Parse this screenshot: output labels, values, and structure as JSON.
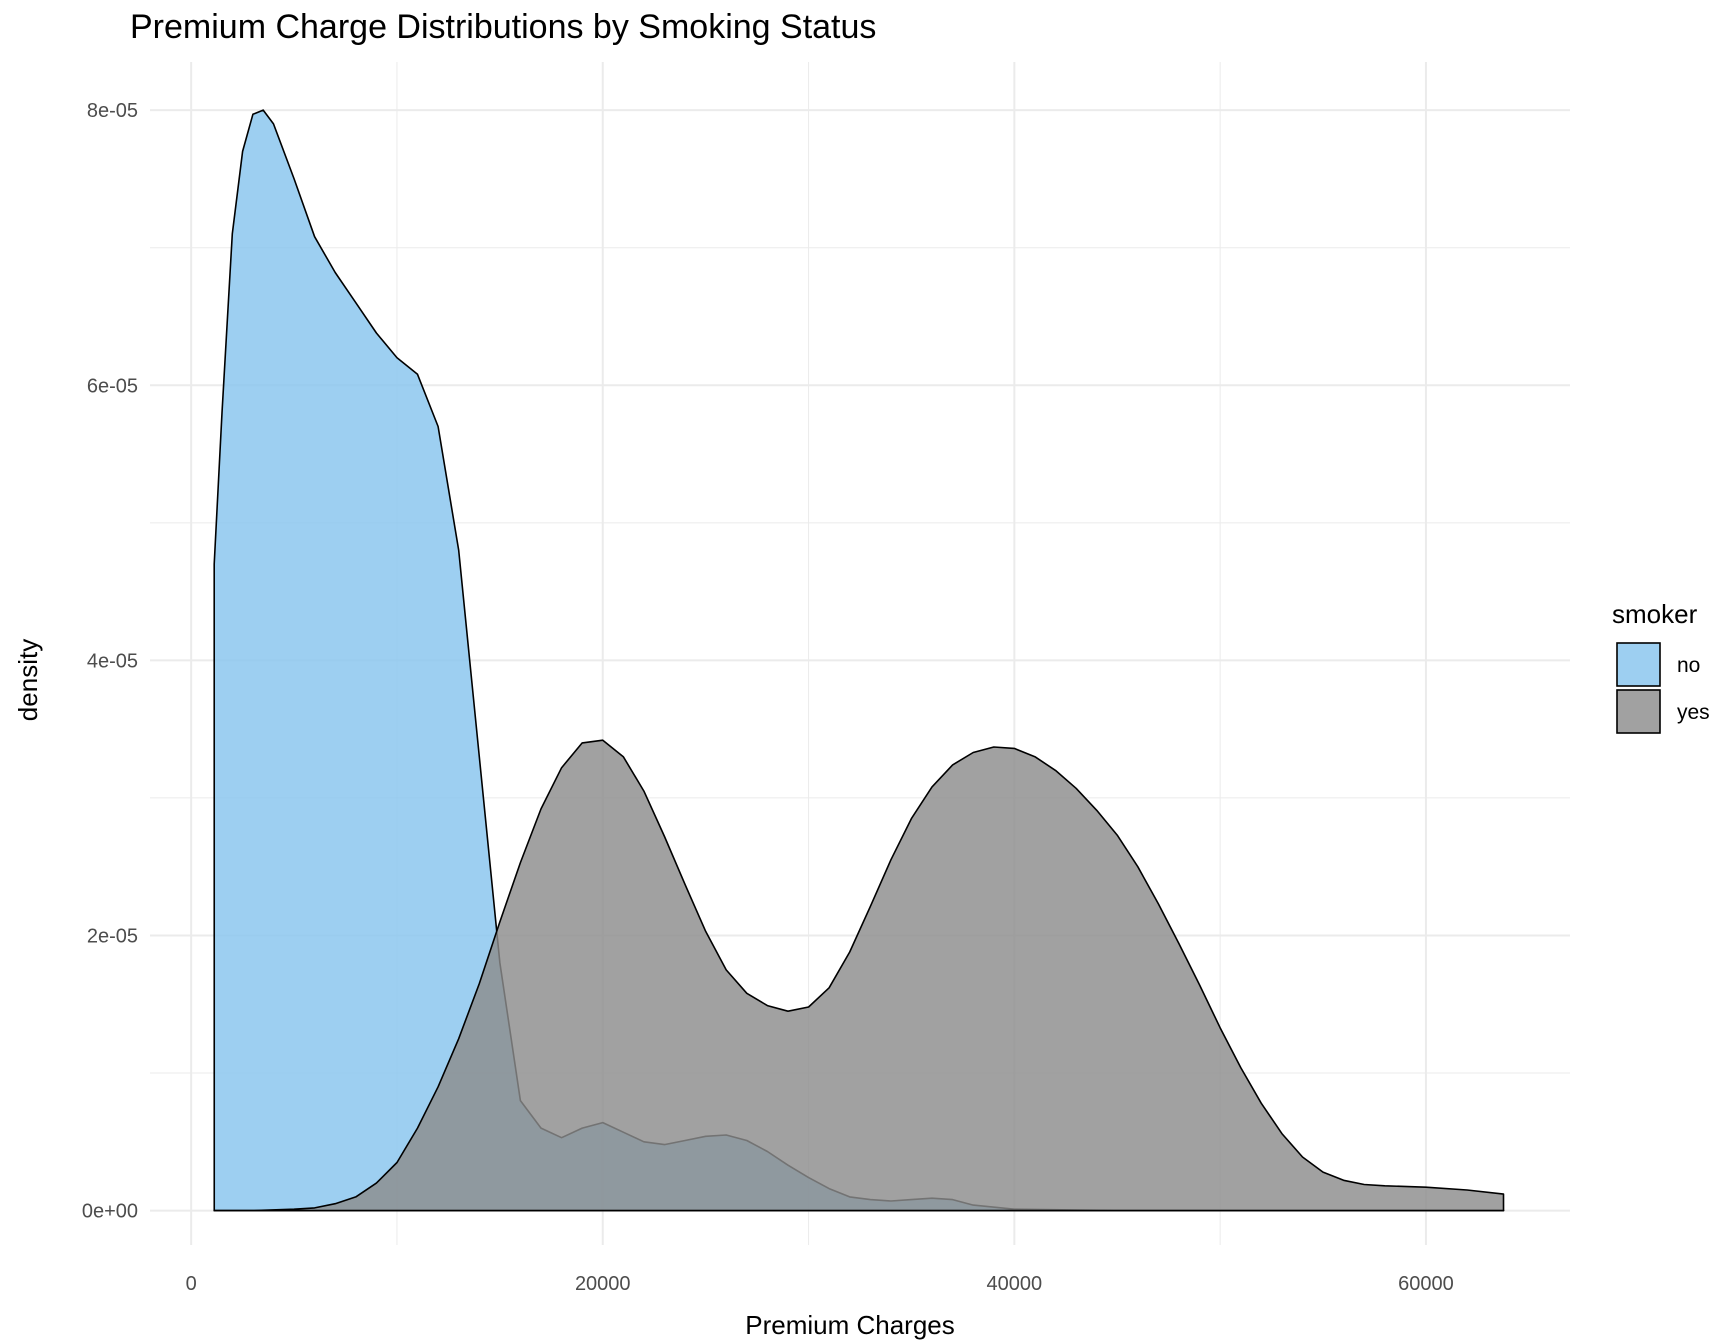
{
  "chart_data": {
    "type": "area",
    "title": "Premium Charge Distributions by Smoking Status",
    "xlabel": "Premium Charges",
    "ylabel": "density",
    "xlim": [
      -2000,
      67000
    ],
    "ylim": [
      -2.5e-06,
      8.35e-05
    ],
    "x_ticks": [
      0,
      20000,
      40000,
      60000
    ],
    "x_tick_labels": [
      "0",
      "20000",
      "40000",
      "60000"
    ],
    "y_ticks": [
      0,
      2e-05,
      4e-05,
      6e-05,
      8e-05
    ],
    "y_tick_labels": [
      "0e+00",
      "2e-05",
      "4e-05",
      "6e-05",
      "8e-05"
    ],
    "grid": true,
    "legend": {
      "title": "smoker",
      "position": "right"
    },
    "series": [
      {
        "name": "no",
        "color": "#87c5ee",
        "points": [
          [
            1122,
            4.7e-05
          ],
          [
            1500,
            5.8e-05
          ],
          [
            2000,
            7.1e-05
          ],
          [
            2500,
            7.7e-05
          ],
          [
            3000,
            7.97e-05
          ],
          [
            3500,
            8e-05
          ],
          [
            4000,
            7.9e-05
          ],
          [
            5000,
            7.5e-05
          ],
          [
            6000,
            7.08e-05
          ],
          [
            7000,
            6.82e-05
          ],
          [
            8000,
            6.6e-05
          ],
          [
            9000,
            6.38e-05
          ],
          [
            10000,
            6.2e-05
          ],
          [
            11000,
            6.08e-05
          ],
          [
            12000,
            5.7e-05
          ],
          [
            13000,
            4.8e-05
          ],
          [
            14000,
            3.3e-05
          ],
          [
            15000,
            1.8e-05
          ],
          [
            16000,
            8e-06
          ],
          [
            17000,
            6e-06
          ],
          [
            18000,
            5.3e-06
          ],
          [
            19000,
            6e-06
          ],
          [
            20000,
            6.4e-06
          ],
          [
            21000,
            5.7e-06
          ],
          [
            22000,
            5e-06
          ],
          [
            23000,
            4.8e-06
          ],
          [
            24000,
            5.1e-06
          ],
          [
            25000,
            5.4e-06
          ],
          [
            26000,
            5.5e-06
          ],
          [
            27000,
            5.1e-06
          ],
          [
            28000,
            4.3e-06
          ],
          [
            29000,
            3.3e-06
          ],
          [
            30000,
            2.4e-06
          ],
          [
            31000,
            1.6e-06
          ],
          [
            32000,
            1e-06
          ],
          [
            33000,
            8e-07
          ],
          [
            34000,
            7e-07
          ],
          [
            35000,
            8e-07
          ],
          [
            36000,
            9e-07
          ],
          [
            37000,
            8e-07
          ],
          [
            38000,
            4e-07
          ],
          [
            40000,
            1e-07
          ],
          [
            45000,
            0.0
          ],
          [
            63770,
            0.0
          ]
        ]
      },
      {
        "name": "yes",
        "color": "#8c8c8c",
        "points": [
          [
            1122,
            0.0
          ],
          [
            3000,
            0.0
          ],
          [
            5000,
            1e-07
          ],
          [
            6000,
            2e-07
          ],
          [
            7000,
            5e-07
          ],
          [
            8000,
            1e-06
          ],
          [
            9000,
            2e-06
          ],
          [
            10000,
            3.5e-06
          ],
          [
            11000,
            6e-06
          ],
          [
            12000,
            9e-06
          ],
          [
            13000,
            1.25e-05
          ],
          [
            14000,
            1.65e-05
          ],
          [
            15000,
            2.1e-05
          ],
          [
            16000,
            2.53e-05
          ],
          [
            17000,
            2.92e-05
          ],
          [
            18000,
            3.22e-05
          ],
          [
            19000,
            3.4e-05
          ],
          [
            20000,
            3.42e-05
          ],
          [
            21000,
            3.3e-05
          ],
          [
            22000,
            3.05e-05
          ],
          [
            23000,
            2.72e-05
          ],
          [
            24000,
            2.37e-05
          ],
          [
            25000,
            2.03e-05
          ],
          [
            26000,
            1.75e-05
          ],
          [
            27000,
            1.58e-05
          ],
          [
            28000,
            1.49e-05
          ],
          [
            29000,
            1.45e-05
          ],
          [
            30000,
            1.48e-05
          ],
          [
            31000,
            1.62e-05
          ],
          [
            32000,
            1.88e-05
          ],
          [
            33000,
            2.21e-05
          ],
          [
            34000,
            2.55e-05
          ],
          [
            35000,
            2.85e-05
          ],
          [
            36000,
            3.08e-05
          ],
          [
            37000,
            3.24e-05
          ],
          [
            38000,
            3.33e-05
          ],
          [
            39000,
            3.37e-05
          ],
          [
            40000,
            3.36e-05
          ],
          [
            41000,
            3.3e-05
          ],
          [
            42000,
            3.2e-05
          ],
          [
            43000,
            3.07e-05
          ],
          [
            44000,
            2.91e-05
          ],
          [
            45000,
            2.73e-05
          ],
          [
            46000,
            2.5e-05
          ],
          [
            47000,
            2.23e-05
          ],
          [
            48000,
            1.94e-05
          ],
          [
            49000,
            1.64e-05
          ],
          [
            50000,
            1.33e-05
          ],
          [
            51000,
            1.04e-05
          ],
          [
            52000,
            7.8e-06
          ],
          [
            53000,
            5.6e-06
          ],
          [
            54000,
            3.9e-06
          ],
          [
            55000,
            2.8e-06
          ],
          [
            56000,
            2.2e-06
          ],
          [
            57000,
            1.9e-06
          ],
          [
            58000,
            1.8e-06
          ],
          [
            60000,
            1.7e-06
          ],
          [
            62000,
            1.5e-06
          ],
          [
            63770,
            1.2e-06
          ]
        ]
      }
    ]
  }
}
